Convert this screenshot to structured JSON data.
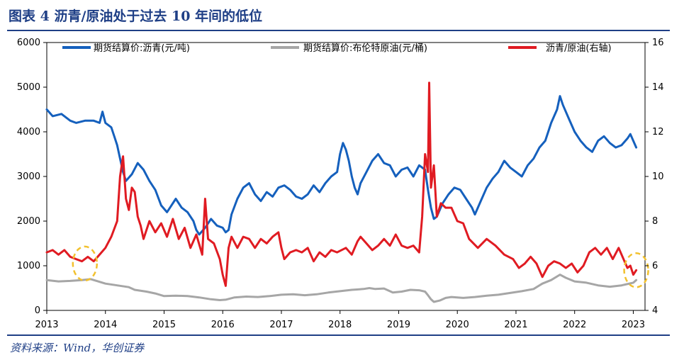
{
  "header": {
    "title": "图表 4  沥青/原油处于过去 10 年间的低位"
  },
  "footer": {
    "source": "资料来源：Wind，华创证券"
  },
  "colors": {
    "accent": "#1f3f86",
    "bitumen": "#1560bd",
    "brent": "#a6a6a6",
    "ratio": "#e01b22",
    "highlight": "#f2c12e"
  },
  "chart_data": {
    "type": "line",
    "x_ticks": [
      "2013",
      "2014",
      "2015",
      "2016",
      "2017",
      "2018",
      "2019",
      "2020",
      "2021",
      "2022",
      "2023"
    ],
    "y_left_ticks": [
      "0",
      "1000",
      "2000",
      "3000",
      "4000",
      "5000",
      "6000"
    ],
    "y_right_ticks": [
      "4",
      "6",
      "8",
      "10",
      "12",
      "14",
      "16"
    ],
    "xlim": [
      2013.0,
      2023.2
    ],
    "ylim_left": [
      0,
      6000
    ],
    "ylim_right": [
      4,
      16
    ],
    "legend_position": "top",
    "series": [
      {
        "name": "期货结算价:沥青(元/吨)",
        "axis": "left",
        "color": "#1560bd",
        "points": [
          [
            2013.0,
            4500
          ],
          [
            2013.1,
            4350
          ],
          [
            2013.25,
            4400
          ],
          [
            2013.4,
            4250
          ],
          [
            2013.5,
            4200
          ],
          [
            2013.65,
            4250
          ],
          [
            2013.8,
            4250
          ],
          [
            2013.9,
            4200
          ],
          [
            2013.95,
            4450
          ],
          [
            2014.0,
            4200
          ],
          [
            2014.1,
            4100
          ],
          [
            2014.15,
            3900
          ],
          [
            2014.2,
            3700
          ],
          [
            2014.25,
            3400
          ],
          [
            2014.3,
            3100
          ],
          [
            2014.35,
            2900
          ],
          [
            2014.45,
            3050
          ],
          [
            2014.55,
            3300
          ],
          [
            2014.65,
            3150
          ],
          [
            2014.75,
            2900
          ],
          [
            2014.85,
            2700
          ],
          [
            2014.95,
            2350
          ],
          [
            2015.05,
            2200
          ],
          [
            2015.1,
            2300
          ],
          [
            2015.2,
            2500
          ],
          [
            2015.3,
            2300
          ],
          [
            2015.4,
            2200
          ],
          [
            2015.5,
            2000
          ],
          [
            2015.55,
            1800
          ],
          [
            2015.6,
            1700
          ],
          [
            2015.7,
            1850
          ],
          [
            2015.8,
            2050
          ],
          [
            2015.9,
            1900
          ],
          [
            2016.0,
            1850
          ],
          [
            2016.05,
            1750
          ],
          [
            2016.1,
            1800
          ],
          [
            2016.15,
            2150
          ],
          [
            2016.25,
            2500
          ],
          [
            2016.35,
            2750
          ],
          [
            2016.45,
            2850
          ],
          [
            2016.55,
            2600
          ],
          [
            2016.65,
            2450
          ],
          [
            2016.75,
            2650
          ],
          [
            2016.85,
            2550
          ],
          [
            2016.95,
            2750
          ],
          [
            2017.05,
            2800
          ],
          [
            2017.15,
            2700
          ],
          [
            2017.25,
            2550
          ],
          [
            2017.35,
            2500
          ],
          [
            2017.45,
            2600
          ],
          [
            2017.55,
            2800
          ],
          [
            2017.65,
            2650
          ],
          [
            2017.75,
            2850
          ],
          [
            2017.85,
            3000
          ],
          [
            2017.95,
            3100
          ],
          [
            2018.0,
            3500
          ],
          [
            2018.05,
            3750
          ],
          [
            2018.1,
            3600
          ],
          [
            2018.15,
            3350
          ],
          [
            2018.2,
            3000
          ],
          [
            2018.25,
            2750
          ],
          [
            2018.3,
            2600
          ],
          [
            2018.35,
            2850
          ],
          [
            2018.45,
            3100
          ],
          [
            2018.55,
            3350
          ],
          [
            2018.65,
            3500
          ],
          [
            2018.75,
            3300
          ],
          [
            2018.85,
            3250
          ],
          [
            2018.95,
            3000
          ],
          [
            2019.05,
            3150
          ],
          [
            2019.15,
            3200
          ],
          [
            2019.25,
            3000
          ],
          [
            2019.35,
            3250
          ],
          [
            2019.45,
            3150
          ],
          [
            2019.5,
            2700
          ],
          [
            2019.55,
            2300
          ],
          [
            2019.6,
            2050
          ],
          [
            2019.65,
            2100
          ],
          [
            2019.75,
            2400
          ],
          [
            2019.85,
            2600
          ],
          [
            2019.95,
            2750
          ],
          [
            2020.05,
            2700
          ],
          [
            2020.15,
            2500
          ],
          [
            2020.25,
            2300
          ],
          [
            2020.3,
            2150
          ],
          [
            2020.4,
            2450
          ],
          [
            2020.5,
            2750
          ],
          [
            2020.6,
            2950
          ],
          [
            2020.7,
            3100
          ],
          [
            2020.8,
            3350
          ],
          [
            2020.9,
            3200
          ],
          [
            2021.0,
            3100
          ],
          [
            2021.1,
            3000
          ],
          [
            2021.2,
            3250
          ],
          [
            2021.3,
            3400
          ],
          [
            2021.4,
            3650
          ],
          [
            2021.5,
            3800
          ],
          [
            2021.6,
            4200
          ],
          [
            2021.7,
            4500
          ],
          [
            2021.75,
            4800
          ],
          [
            2021.8,
            4600
          ],
          [
            2021.9,
            4300
          ],
          [
            2022.0,
            4000
          ],
          [
            2022.1,
            3800
          ],
          [
            2022.2,
            3650
          ],
          [
            2022.3,
            3550
          ],
          [
            2022.4,
            3800
          ],
          [
            2022.5,
            3900
          ],
          [
            2022.6,
            3750
          ],
          [
            2022.7,
            3650
          ],
          [
            2022.8,
            3700
          ],
          [
            2022.9,
            3850
          ],
          [
            2022.95,
            3950
          ],
          [
            2023.05,
            3650
          ]
        ]
      },
      {
        "name": "期货结算价:布伦特原油(元/桶)",
        "axis": "left",
        "color": "#a6a6a6",
        "points": [
          [
            2013.0,
            680
          ],
          [
            2013.2,
            650
          ],
          [
            2013.4,
            660
          ],
          [
            2013.6,
            680
          ],
          [
            2013.75,
            700
          ],
          [
            2013.9,
            640
          ],
          [
            2014.0,
            600
          ],
          [
            2014.2,
            560
          ],
          [
            2014.4,
            520
          ],
          [
            2014.5,
            460
          ],
          [
            2014.7,
            420
          ],
          [
            2014.85,
            380
          ],
          [
            2015.0,
            320
          ],
          [
            2015.2,
            330
          ],
          [
            2015.4,
            320
          ],
          [
            2015.6,
            290
          ],
          [
            2015.8,
            250
          ],
          [
            2015.95,
            230
          ],
          [
            2016.05,
            240
          ],
          [
            2016.2,
            290
          ],
          [
            2016.4,
            310
          ],
          [
            2016.6,
            300
          ],
          [
            2016.8,
            320
          ],
          [
            2017.0,
            350
          ],
          [
            2017.2,
            360
          ],
          [
            2017.4,
            340
          ],
          [
            2017.6,
            360
          ],
          [
            2017.8,
            400
          ],
          [
            2018.0,
            430
          ],
          [
            2018.2,
            460
          ],
          [
            2018.4,
            480
          ],
          [
            2018.5,
            500
          ],
          [
            2018.6,
            480
          ],
          [
            2018.75,
            490
          ],
          [
            2018.9,
            400
          ],
          [
            2019.05,
            420
          ],
          [
            2019.2,
            460
          ],
          [
            2019.35,
            450
          ],
          [
            2019.45,
            420
          ],
          [
            2019.5,
            340
          ],
          [
            2019.55,
            250
          ],
          [
            2019.6,
            190
          ],
          [
            2019.7,
            220
          ],
          [
            2019.8,
            280
          ],
          [
            2019.9,
            300
          ],
          [
            2020.1,
            280
          ],
          [
            2020.3,
            300
          ],
          [
            2020.5,
            330
          ],
          [
            2020.7,
            350
          ],
          [
            2020.9,
            390
          ],
          [
            2021.1,
            430
          ],
          [
            2021.3,
            480
          ],
          [
            2021.45,
            600
          ],
          [
            2021.6,
            680
          ],
          [
            2021.75,
            800
          ],
          [
            2021.85,
            730
          ],
          [
            2022.0,
            650
          ],
          [
            2022.2,
            620
          ],
          [
            2022.4,
            560
          ],
          [
            2022.6,
            530
          ],
          [
            2022.8,
            560
          ],
          [
            2023.0,
            620
          ],
          [
            2023.05,
            680
          ]
        ]
      },
      {
        "name": "沥青/原油(右轴)",
        "axis": "right",
        "color": "#e01b22",
        "points": [
          [
            2013.0,
            6.6
          ],
          [
            2013.1,
            6.7
          ],
          [
            2013.2,
            6.5
          ],
          [
            2013.3,
            6.7
          ],
          [
            2013.4,
            6.4
          ],
          [
            2013.5,
            6.3
          ],
          [
            2013.6,
            6.2
          ],
          [
            2013.7,
            6.4
          ],
          [
            2013.8,
            6.2
          ],
          [
            2013.9,
            6.5
          ],
          [
            2014.0,
            6.8
          ],
          [
            2014.1,
            7.3
          ],
          [
            2014.2,
            8.0
          ],
          [
            2014.25,
            10.0
          ],
          [
            2014.3,
            10.9
          ],
          [
            2014.35,
            9.0
          ],
          [
            2014.4,
            8.5
          ],
          [
            2014.45,
            9.5
          ],
          [
            2014.5,
            9.3
          ],
          [
            2014.55,
            8.2
          ],
          [
            2014.6,
            7.8
          ],
          [
            2014.65,
            7.2
          ],
          [
            2014.75,
            8.0
          ],
          [
            2014.85,
            7.5
          ],
          [
            2014.95,
            7.9
          ],
          [
            2015.05,
            7.3
          ],
          [
            2015.15,
            8.1
          ],
          [
            2015.25,
            7.2
          ],
          [
            2015.35,
            7.7
          ],
          [
            2015.45,
            6.8
          ],
          [
            2015.55,
            7.4
          ],
          [
            2015.65,
            6.5
          ],
          [
            2015.7,
            9.0
          ],
          [
            2015.75,
            7.2
          ],
          [
            2015.85,
            7.0
          ],
          [
            2015.95,
            6.3
          ],
          [
            2016.0,
            5.6
          ],
          [
            2016.05,
            5.1
          ],
          [
            2016.1,
            6.8
          ],
          [
            2016.15,
            7.3
          ],
          [
            2016.25,
            6.8
          ],
          [
            2016.35,
            7.3
          ],
          [
            2016.45,
            7.2
          ],
          [
            2016.55,
            6.8
          ],
          [
            2016.65,
            7.2
          ],
          [
            2016.75,
            7.0
          ],
          [
            2016.85,
            7.3
          ],
          [
            2016.95,
            7.5
          ],
          [
            2017.0,
            6.8
          ],
          [
            2017.05,
            6.3
          ],
          [
            2017.15,
            6.6
          ],
          [
            2017.25,
            6.7
          ],
          [
            2017.35,
            6.6
          ],
          [
            2017.45,
            6.8
          ],
          [
            2017.55,
            6.2
          ],
          [
            2017.65,
            6.6
          ],
          [
            2017.75,
            6.4
          ],
          [
            2017.85,
            6.7
          ],
          [
            2017.95,
            6.6
          ],
          [
            2018.1,
            6.8
          ],
          [
            2018.2,
            6.5
          ],
          [
            2018.3,
            7.1
          ],
          [
            2018.35,
            7.3
          ],
          [
            2018.45,
            7.0
          ],
          [
            2018.55,
            6.7
          ],
          [
            2018.65,
            6.9
          ],
          [
            2018.75,
            7.2
          ],
          [
            2018.85,
            6.9
          ],
          [
            2018.95,
            7.4
          ],
          [
            2019.05,
            6.9
          ],
          [
            2019.15,
            6.8
          ],
          [
            2019.25,
            6.9
          ],
          [
            2019.35,
            6.6
          ],
          [
            2019.4,
            8.2
          ],
          [
            2019.45,
            11.0
          ],
          [
            2019.5,
            10.2
          ],
          [
            2019.52,
            14.2
          ],
          [
            2019.55,
            9.5
          ],
          [
            2019.6,
            10.5
          ],
          [
            2019.65,
            8.2
          ],
          [
            2019.72,
            8.8
          ],
          [
            2019.8,
            8.6
          ],
          [
            2019.9,
            8.6
          ],
          [
            2020.0,
            8.0
          ],
          [
            2020.1,
            7.9
          ],
          [
            2020.2,
            7.2
          ],
          [
            2020.35,
            6.8
          ],
          [
            2020.5,
            7.2
          ],
          [
            2020.65,
            6.9
          ],
          [
            2020.8,
            6.5
          ],
          [
            2020.95,
            6.3
          ],
          [
            2021.05,
            5.9
          ],
          [
            2021.15,
            6.1
          ],
          [
            2021.25,
            6.4
          ],
          [
            2021.35,
            6.1
          ],
          [
            2021.45,
            5.5
          ],
          [
            2021.55,
            6.0
          ],
          [
            2021.65,
            6.2
          ],
          [
            2021.75,
            6.1
          ],
          [
            2021.85,
            5.9
          ],
          [
            2021.95,
            6.1
          ],
          [
            2022.05,
            5.7
          ],
          [
            2022.15,
            6.0
          ],
          [
            2022.25,
            6.6
          ],
          [
            2022.35,
            6.8
          ],
          [
            2022.45,
            6.5
          ],
          [
            2022.55,
            6.8
          ],
          [
            2022.65,
            6.3
          ],
          [
            2022.75,
            6.8
          ],
          [
            2022.85,
            6.2
          ],
          [
            2022.9,
            5.9
          ],
          [
            2022.95,
            6.0
          ],
          [
            2023.0,
            5.6
          ],
          [
            2023.05,
            5.8
          ]
        ]
      }
    ],
    "annotations": [
      {
        "type": "dashed-ellipse",
        "x": 2013.65,
        "y_right": 6.1,
        "color": "#f2c12e"
      },
      {
        "type": "dashed-ellipse",
        "x": 2023.05,
        "y_right": 5.8,
        "color": "#f2c12e"
      }
    ]
  }
}
